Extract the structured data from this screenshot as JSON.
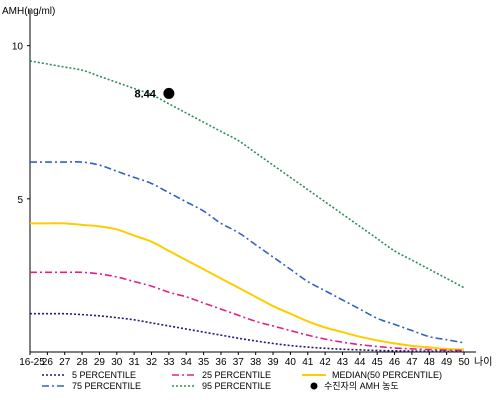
{
  "chart_data": {
    "type": "line",
    "ylabel": "AMH(ng/ml)",
    "xlabel": "나이",
    "ylim": [
      0,
      11
    ],
    "y_ticks": [
      5,
      10
    ],
    "categories": [
      "16-25",
      "26",
      "27",
      "28",
      "29",
      "30",
      "31",
      "32",
      "33",
      "34",
      "35",
      "36",
      "37",
      "38",
      "39",
      "40",
      "41",
      "42",
      "43",
      "44",
      "45",
      "46",
      "47",
      "48",
      "49",
      "50"
    ],
    "series": [
      {
        "name": "95 PERCENTILE",
        "color": "#2e8b57",
        "dash": "2,2",
        "values": [
          9.5,
          9.4,
          9.3,
          9.2,
          9.0,
          8.8,
          8.6,
          8.4,
          8.1,
          7.8,
          7.5,
          7.2,
          6.9,
          6.5,
          6.1,
          5.7,
          5.3,
          4.9,
          4.5,
          4.1,
          3.7,
          3.3,
          3.0,
          2.7,
          2.4,
          2.1
        ]
      },
      {
        "name": "75 PERCENTILE",
        "color": "#3060c8",
        "dash": "7,3,2,3",
        "values": [
          6.2,
          6.2,
          6.2,
          6.2,
          6.1,
          5.9,
          5.7,
          5.5,
          5.2,
          4.9,
          4.6,
          4.2,
          3.9,
          3.5,
          3.1,
          2.7,
          2.3,
          2.0,
          1.7,
          1.4,
          1.1,
          0.9,
          0.7,
          0.5,
          0.4,
          0.3
        ]
      },
      {
        "name": "MEDIAN(50 PERCENTILE)",
        "color": "#ffcc00",
        "dash": "",
        "values": [
          4.2,
          4.2,
          4.2,
          4.15,
          4.1,
          4.0,
          3.8,
          3.6,
          3.3,
          3.0,
          2.7,
          2.4,
          2.1,
          1.8,
          1.5,
          1.25,
          1.0,
          0.8,
          0.65,
          0.5,
          0.38,
          0.28,
          0.2,
          0.15,
          0.1,
          0.08
        ]
      },
      {
        "name": "25 PERCENTILE",
        "color": "#e0208a",
        "dash": "7,3,2,3",
        "values": [
          2.6,
          2.6,
          2.6,
          2.6,
          2.55,
          2.45,
          2.3,
          2.15,
          1.95,
          1.8,
          1.6,
          1.4,
          1.2,
          1.0,
          0.85,
          0.7,
          0.55,
          0.42,
          0.32,
          0.24,
          0.18,
          0.13,
          0.1,
          0.08,
          0.06,
          0.05
        ]
      },
      {
        "name": "5 PERCENTILE",
        "color": "#1a1a80",
        "dash": "2,2",
        "values": [
          1.25,
          1.25,
          1.25,
          1.22,
          1.18,
          1.12,
          1.05,
          0.95,
          0.85,
          0.75,
          0.65,
          0.55,
          0.45,
          0.36,
          0.28,
          0.21,
          0.16,
          0.12,
          0.09,
          0.07,
          0.05,
          0.04,
          0.03,
          0.025,
          0.02,
          0.015
        ]
      }
    ],
    "point": {
      "name": "수진자의 AMH 농도",
      "category": "33",
      "value": 8.44,
      "label": "8.44"
    },
    "legend": [
      {
        "label": "5 PERCENTILE",
        "color": "#1a1a80",
        "dash": "2,2"
      },
      {
        "label": "25 PERCENTILE",
        "color": "#e0208a",
        "dash": "7,3,2,3"
      },
      {
        "label": "MEDIAN(50 PERCENTILE)",
        "color": "#ffcc00",
        "dash": ""
      },
      {
        "label": "75 PERCENTILE",
        "color": "#3060c8",
        "dash": "7,3,2,3"
      },
      {
        "label": "95 PERCENTILE",
        "color": "#2e8b57",
        "dash": "2,2"
      },
      {
        "label": "수진자의 AMH 농도",
        "color": "#000000",
        "marker": "dot"
      }
    ],
    "legend_placement": "bottom",
    "grid": false
  }
}
